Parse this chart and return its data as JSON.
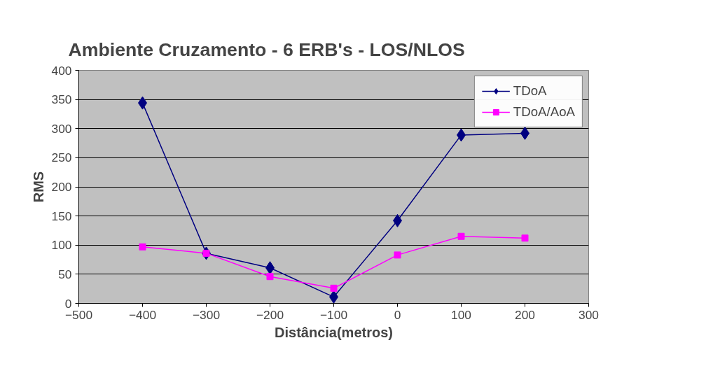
{
  "chart_data": {
    "type": "line",
    "title": "Ambiente Cruzamento - 6 ERB's  -  LOS/NLOS",
    "xlabel": "Distância(metros)",
    "ylabel": "RMS",
    "x": [
      -400,
      -300,
      -200,
      -100,
      0,
      100,
      200
    ],
    "series": [
      {
        "name": "TDoA",
        "color": "#000080",
        "marker": "diamond",
        "values": [
          344,
          86,
          61,
          11,
          142,
          289,
          292
        ]
      },
      {
        "name": "TDoA/AoA",
        "color": "#ff00ff",
        "marker": "square",
        "values": [
          97,
          86,
          46,
          26,
          83,
          115,
          112
        ]
      }
    ],
    "xlim": [
      -500,
      300
    ],
    "xticks": [
      -500,
      -400,
      -300,
      -200,
      -100,
      0,
      100,
      200,
      300
    ],
    "ylim": [
      0,
      400
    ],
    "yticks": [
      0,
      50,
      100,
      150,
      200,
      250,
      300,
      350,
      400
    ],
    "grid": "y",
    "legend": "top right",
    "line_style": "solid"
  }
}
